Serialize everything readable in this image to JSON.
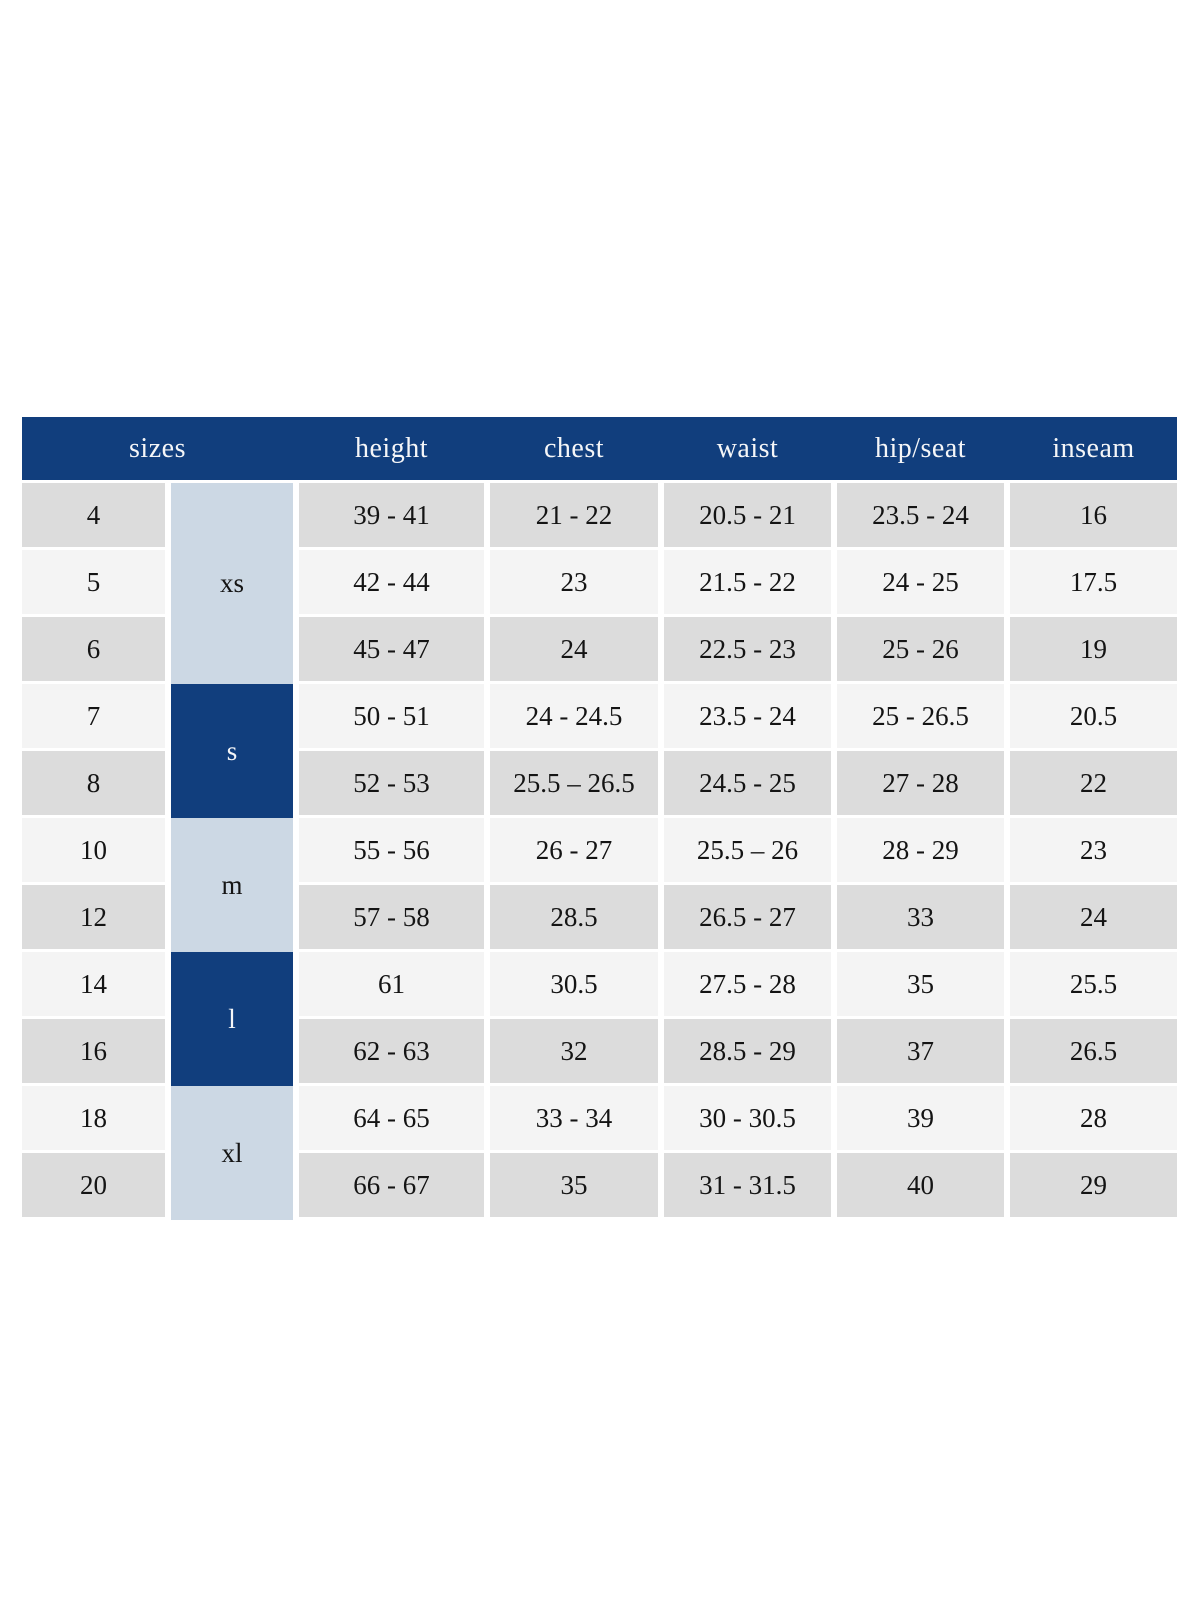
{
  "chart_data": {
    "type": "table",
    "header": [
      "sizes",
      "height",
      "chest",
      "waist",
      "hip/seat",
      "inseam"
    ],
    "value_columns": [
      "height",
      "chest",
      "waist",
      "hip_seat",
      "inseam"
    ],
    "size_groups": [
      {
        "label": "xs",
        "span": 3,
        "shade": "light"
      },
      {
        "label": "s",
        "span": 2,
        "shade": "dark"
      },
      {
        "label": "m",
        "span": 2,
        "shade": "light"
      },
      {
        "label": "l",
        "span": 2,
        "shade": "dark"
      },
      {
        "label": "xl",
        "span": 2,
        "shade": "light"
      }
    ],
    "rows": [
      {
        "size": "4",
        "group": "xs",
        "height": "39 - 41",
        "chest": "21 - 22",
        "waist": "20.5 - 21",
        "hip_seat": "23.5 - 24",
        "inseam": "16"
      },
      {
        "size": "5",
        "group": "xs",
        "height": "42 - 44",
        "chest": "23",
        "waist": "21.5 - 22",
        "hip_seat": "24 - 25",
        "inseam": "17.5"
      },
      {
        "size": "6",
        "group": "xs",
        "height": "45 - 47",
        "chest": "24",
        "waist": "22.5 - 23",
        "hip_seat": "25 - 26",
        "inseam": "19"
      },
      {
        "size": "7",
        "group": "s",
        "height": "50 - 51",
        "chest": "24 - 24.5",
        "waist": "23.5 - 24",
        "hip_seat": "25 - 26.5",
        "inseam": "20.5"
      },
      {
        "size": "8",
        "group": "s",
        "height": "52 - 53",
        "chest": "25.5 – 26.5",
        "waist": "24.5 - 25",
        "hip_seat": "27 - 28",
        "inseam": "22"
      },
      {
        "size": "10",
        "group": "m",
        "height": "55 - 56",
        "chest": "26 - 27",
        "waist": "25.5 – 26",
        "hip_seat": "28 - 29",
        "inseam": "23"
      },
      {
        "size": "12",
        "group": "m",
        "height": "57 - 58",
        "chest": "28.5",
        "waist": "26.5 - 27",
        "hip_seat": "33",
        "inseam": "24"
      },
      {
        "size": "14",
        "group": "l",
        "height": "61",
        "chest": "30.5",
        "waist": "27.5 - 28",
        "hip_seat": "35",
        "inseam": "25.5"
      },
      {
        "size": "16",
        "group": "l",
        "height": "62 - 63",
        "chest": "32",
        "waist": "28.5 - 29",
        "hip_seat": "37",
        "inseam": "26.5"
      },
      {
        "size": "18",
        "group": "xl",
        "height": "64 - 65",
        "chest": "33 - 34",
        "waist": "30 - 30.5",
        "hip_seat": "39",
        "inseam": "28"
      },
      {
        "size": "20",
        "group": "xl",
        "height": "66 - 67",
        "chest": "35",
        "waist": "31 - 31.5",
        "hip_seat": "40",
        "inseam": "29"
      }
    ]
  },
  "colors": {
    "page_bg": "#ffffff",
    "header_bg": "#113e7d",
    "header_text": "#f5f6f8",
    "group_light_bg": "#ccd8e4",
    "group_dark_bg": "#113e7d",
    "row_dark_bg": "#dcdcdc",
    "row_light_bg": "#f4f4f4",
    "cell_text": "#141414"
  }
}
